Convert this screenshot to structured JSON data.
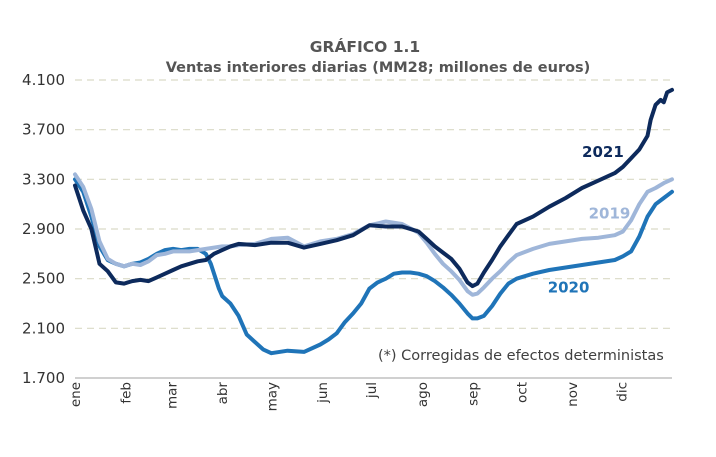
{
  "chart_data": {
    "type": "line",
    "title": "GRÁFICO 1.1",
    "subtitle": "Ventas interiores diarias (MM28; millones  de euros)",
    "ylim": [
      1700,
      4100
    ],
    "yticks": [
      "1.700",
      "2.100",
      "2.500",
      "2.900",
      "3.300",
      "3.700",
      "4.100"
    ],
    "ytick_values": [
      1700,
      2100,
      2500,
      2900,
      3300,
      3700,
      4100
    ],
    "xlim": [
      0,
      365
    ],
    "xticks": [
      "ene",
      "feb",
      "mar",
      "abr",
      "may",
      "jun",
      "jul",
      "ago",
      "sep",
      "oct",
      "nov",
      "dic"
    ],
    "xtick_days": [
      0,
      31,
      59,
      90,
      120,
      151,
      181,
      212,
      243,
      273,
      304,
      334
    ],
    "grid": true,
    "note": "(*) Corregidas de efectos deterministas",
    "series": [
      {
        "name": "2021",
        "color": "#0d2a5c",
        "x": [
          0,
          5,
          10,
          15,
          20,
          25,
          30,
          35,
          40,
          45,
          50,
          55,
          60,
          65,
          70,
          75,
          80,
          85,
          90,
          95,
          100,
          110,
          120,
          130,
          140,
          150,
          160,
          170,
          180,
          190,
          200,
          210,
          215,
          220,
          225,
          230,
          235,
          240,
          243,
          246,
          250,
          255,
          260,
          265,
          270,
          280,
          290,
          300,
          310,
          320,
          330,
          335,
          340,
          345,
          350,
          352,
          355,
          358,
          360,
          362,
          365
        ],
        "y": [
          3250,
          3050,
          2900,
          2620,
          2560,
          2470,
          2460,
          2480,
          2490,
          2480,
          2510,
          2540,
          2570,
          2600,
          2620,
          2640,
          2650,
          2700,
          2730,
          2760,
          2780,
          2770,
          2790,
          2790,
          2750,
          2780,
          2810,
          2850,
          2930,
          2920,
          2920,
          2880,
          2820,
          2760,
          2710,
          2660,
          2580,
          2470,
          2440,
          2460,
          2550,
          2650,
          2760,
          2850,
          2940,
          3000,
          3080,
          3150,
          3230,
          3290,
          3350,
          3400,
          3470,
          3540,
          3650,
          3780,
          3900,
          3940,
          3920,
          4000,
          4020
        ]
      },
      {
        "name": "2019",
        "color": "#9fb6d9",
        "x": [
          0,
          5,
          10,
          15,
          20,
          25,
          30,
          35,
          40,
          45,
          50,
          55,
          60,
          65,
          70,
          75,
          80,
          85,
          90,
          95,
          100,
          110,
          120,
          130,
          140,
          150,
          160,
          170,
          180,
          190,
          200,
          210,
          215,
          220,
          225,
          230,
          235,
          240,
          243,
          246,
          250,
          255,
          260,
          265,
          270,
          280,
          290,
          300,
          310,
          320,
          330,
          335,
          340,
          345,
          350,
          355,
          360,
          365
        ],
        "y": [
          3340,
          3240,
          3060,
          2800,
          2660,
          2620,
          2600,
          2620,
          2610,
          2640,
          2690,
          2700,
          2720,
          2720,
          2720,
          2730,
          2740,
          2750,
          2760,
          2760,
          2770,
          2780,
          2820,
          2830,
          2760,
          2800,
          2820,
          2860,
          2930,
          2960,
          2940,
          2870,
          2790,
          2700,
          2620,
          2560,
          2490,
          2400,
          2370,
          2380,
          2430,
          2500,
          2560,
          2630,
          2690,
          2740,
          2780,
          2800,
          2820,
          2830,
          2850,
          2880,
          2970,
          3100,
          3200,
          3230,
          3270,
          3300
        ]
      },
      {
        "name": "2020",
        "color": "#1f74b8",
        "x": [
          0,
          5,
          10,
          15,
          20,
          25,
          30,
          35,
          40,
          45,
          50,
          55,
          60,
          65,
          70,
          75,
          80,
          83,
          86,
          88,
          90,
          95,
          100,
          105,
          110,
          115,
          120,
          130,
          140,
          150,
          155,
          160,
          165,
          170,
          175,
          180,
          185,
          190,
          195,
          200,
          205,
          210,
          215,
          220,
          225,
          230,
          235,
          240,
          243,
          246,
          250,
          255,
          260,
          265,
          270,
          280,
          290,
          300,
          310,
          320,
          330,
          335,
          340,
          345,
          350,
          355,
          360,
          365
        ],
        "y": [
          3300,
          3200,
          3000,
          2760,
          2650,
          2620,
          2600,
          2620,
          2630,
          2660,
          2700,
          2730,
          2740,
          2730,
          2740,
          2740,
          2700,
          2620,
          2500,
          2420,
          2360,
          2300,
          2200,
          2050,
          1990,
          1930,
          1900,
          1920,
          1910,
          1970,
          2010,
          2060,
          2150,
          2220,
          2300,
          2420,
          2470,
          2500,
          2540,
          2550,
          2550,
          2540,
          2520,
          2480,
          2430,
          2370,
          2300,
          2220,
          2180,
          2180,
          2200,
          2280,
          2380,
          2460,
          2500,
          2540,
          2570,
          2590,
          2610,
          2630,
          2650,
          2680,
          2720,
          2840,
          3000,
          3100,
          3150,
          3200
        ]
      }
    ]
  }
}
